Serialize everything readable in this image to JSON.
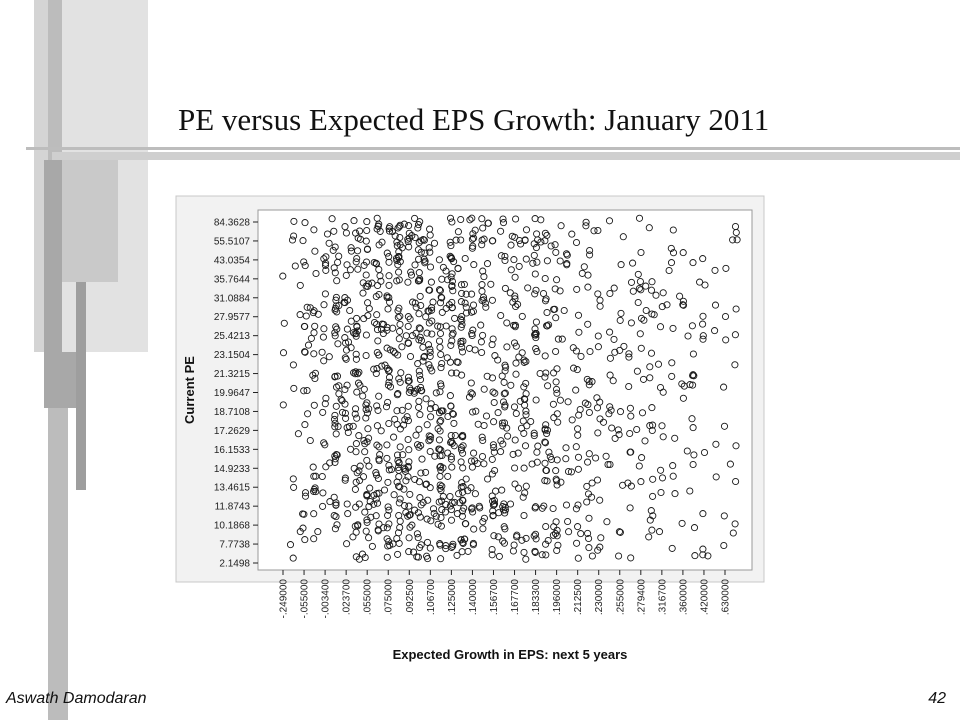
{
  "slide": {
    "title": "PE versus Expected EPS Growth: January 2011",
    "footer_author": "Aswath Damodaran",
    "page_number": "42"
  },
  "colors": {
    "bar_light": "#d9d9d9",
    "bar_mid": "#bdbdbd",
    "bar_dark": "#9a9a9a",
    "plot_background": "#ffffff",
    "marker": "#1a1a1a"
  },
  "chart_data": {
    "type": "scatter",
    "title": "",
    "xlabel": "Expected Growth in EPS: next 5 years",
    "ylabel": "Current PE",
    "x_ticks": [
      "-.249000",
      "-.055000",
      "-.003400",
      ".023700",
      ".055000",
      ".075000",
      ".092500",
      ".106700",
      ".125000",
      ".140000",
      ".156700",
      ".167700",
      ".183300",
      ".196000",
      ".212500",
      ".230000",
      ".255000",
      ".279400",
      ".316700",
      ".360000",
      ".420000",
      ".630000"
    ],
    "y_ticks": [
      "84.3628",
      "55.5107",
      "43.0354",
      "35.7644",
      "31.0884",
      "27.9577",
      "25.4213",
      "23.1504",
      "21.3215",
      "19.9647",
      "18.7108",
      "17.2629",
      "16.1533",
      "14.9233",
      "13.4615",
      "11.8743",
      "10.1868",
      "7.7738",
      "2.1498"
    ],
    "x_scale": "ordinal-quantile",
    "y_scale": "ordinal-quantile",
    "grid": false,
    "marker": "open-circle",
    "points_note": "Approximately 1,500 firms; dense band of points between .055000 and .140000 growth across all PE levels, sparser elsewhere."
  }
}
